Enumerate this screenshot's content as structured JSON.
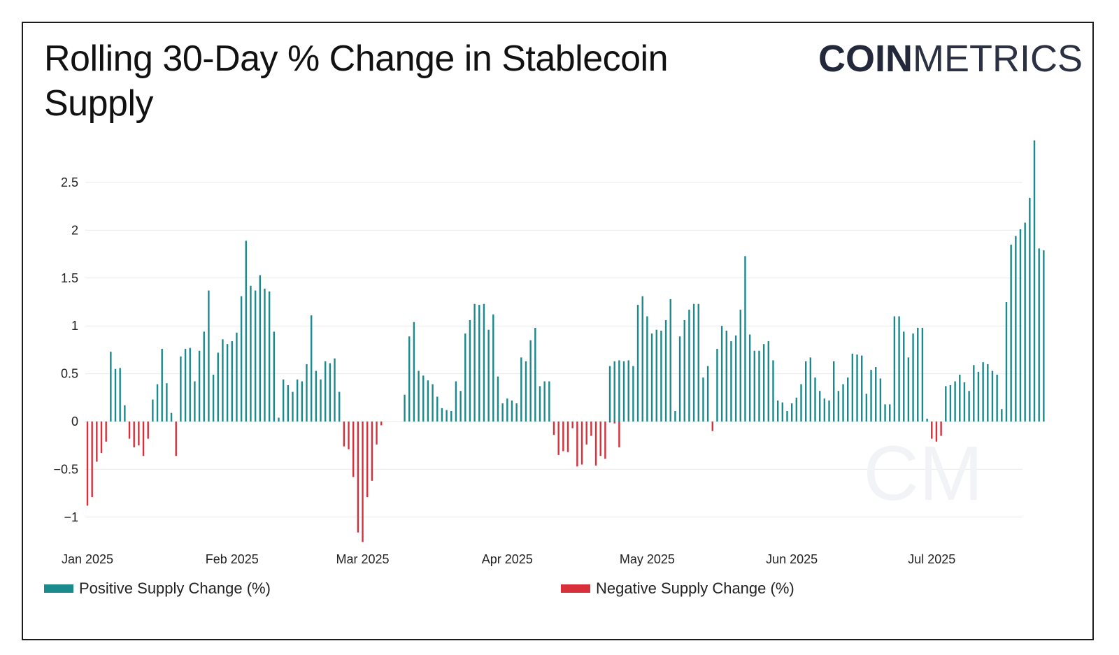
{
  "header": {
    "title": "Rolling 30-Day % Change in Stablecoin Supply",
    "logo_bold": "COIN",
    "logo_light": "METRICS",
    "watermark": "CM"
  },
  "colors": {
    "positive": "#1a8a8c",
    "negative": "#d7303b",
    "grid": "#e9e9e9"
  },
  "legend": {
    "positive_label": "Positive Supply Change (%)",
    "negative_label": "Negative Supply Change (%)"
  },
  "chart_data": {
    "type": "bar",
    "grid": true,
    "legend_position": "bottom",
    "ylim": [
      -1.3,
      3.0
    ],
    "yticks": [
      {
        "value": 2.5,
        "label": "2.5"
      },
      {
        "value": 2,
        "label": "2"
      },
      {
        "value": 1.5,
        "label": "1.5"
      },
      {
        "value": 1,
        "label": "1"
      },
      {
        "value": 0.5,
        "label": "0.5"
      },
      {
        "value": 0,
        "label": "0"
      },
      {
        "value": -0.5,
        "label": "−0.5"
      },
      {
        "value": -1,
        "label": "−1"
      }
    ],
    "xticks": [
      {
        "date": "2025-01-01",
        "label": "Jan 2025"
      },
      {
        "date": "2025-02-01",
        "label": "Feb 2025"
      },
      {
        "date": "2025-03-01",
        "label": "Mar 2025"
      },
      {
        "date": "2025-04-01",
        "label": "Apr 2025"
      },
      {
        "date": "2025-05-01",
        "label": "May 2025"
      },
      {
        "date": "2025-06-01",
        "label": "Jun 2025"
      },
      {
        "date": "2025-07-01",
        "label": "Jul 2025"
      }
    ],
    "series": [
      {
        "name": "Positive Supply Change (%)",
        "points": [
          [
            "2025-01-06",
            0.73
          ],
          [
            "2025-01-07",
            0.55
          ],
          [
            "2025-01-08",
            0.56
          ],
          [
            "2025-01-09",
            0.17
          ],
          [
            "2025-01-15",
            0.23
          ],
          [
            "2025-01-16",
            0.39
          ],
          [
            "2025-01-17",
            0.76
          ],
          [
            "2025-01-18",
            0.4
          ],
          [
            "2025-01-19",
            0.09
          ],
          [
            "2025-01-21",
            0.68
          ],
          [
            "2025-01-22",
            0.76
          ],
          [
            "2025-01-23",
            0.77
          ],
          [
            "2025-01-24",
            0.42
          ],
          [
            "2025-01-25",
            0.74
          ],
          [
            "2025-01-26",
            0.94
          ],
          [
            "2025-01-27",
            1.37
          ],
          [
            "2025-01-28",
            0.49
          ],
          [
            "2025-01-29",
            0.72
          ],
          [
            "2025-01-30",
            0.86
          ],
          [
            "2025-01-31",
            0.81
          ],
          [
            "2025-02-01",
            0.84
          ],
          [
            "2025-02-02",
            0.93
          ],
          [
            "2025-02-03",
            1.31
          ],
          [
            "2025-02-04",
            1.89
          ],
          [
            "2025-02-05",
            1.42
          ],
          [
            "2025-02-06",
            1.37
          ],
          [
            "2025-02-07",
            1.53
          ],
          [
            "2025-02-08",
            1.39
          ],
          [
            "2025-02-09",
            1.36
          ],
          [
            "2025-02-10",
            0.94
          ],
          [
            "2025-02-11",
            0.04
          ],
          [
            "2025-02-12",
            0.44
          ],
          [
            "2025-02-13",
            0.38
          ],
          [
            "2025-02-14",
            0.31
          ],
          [
            "2025-02-15",
            0.44
          ],
          [
            "2025-02-16",
            0.42
          ],
          [
            "2025-02-17",
            0.6
          ],
          [
            "2025-02-18",
            1.11
          ],
          [
            "2025-02-19",
            0.53
          ],
          [
            "2025-02-20",
            0.44
          ],
          [
            "2025-02-21",
            0.63
          ],
          [
            "2025-02-22",
            0.61
          ],
          [
            "2025-02-23",
            0.66
          ],
          [
            "2025-02-24",
            0.31
          ],
          [
            "2025-03-10",
            0.28
          ],
          [
            "2025-03-11",
            0.89
          ],
          [
            "2025-03-12",
            1.04
          ],
          [
            "2025-03-13",
            0.53
          ],
          [
            "2025-03-14",
            0.48
          ],
          [
            "2025-03-15",
            0.43
          ],
          [
            "2025-03-16",
            0.39
          ],
          [
            "2025-03-17",
            0.26
          ],
          [
            "2025-03-18",
            0.14
          ],
          [
            "2025-03-19",
            0.12
          ],
          [
            "2025-03-20",
            0.11
          ],
          [
            "2025-03-21",
            0.42
          ],
          [
            "2025-03-22",
            0.32
          ],
          [
            "2025-03-23",
            0.92
          ],
          [
            "2025-03-24",
            1.06
          ],
          [
            "2025-03-25",
            1.23
          ],
          [
            "2025-03-26",
            1.22
          ],
          [
            "2025-03-27",
            1.23
          ],
          [
            "2025-03-28",
            0.96
          ],
          [
            "2025-03-29",
            1.12
          ],
          [
            "2025-03-30",
            0.47
          ],
          [
            "2025-03-31",
            0.19
          ],
          [
            "2025-04-01",
            0.24
          ],
          [
            "2025-04-02",
            0.22
          ],
          [
            "2025-04-03",
            0.19
          ],
          [
            "2025-04-04",
            0.67
          ],
          [
            "2025-04-05",
            0.63
          ],
          [
            "2025-04-06",
            0.85
          ],
          [
            "2025-04-07",
            0.98
          ],
          [
            "2025-04-08",
            0.37
          ],
          [
            "2025-04-09",
            0.42
          ],
          [
            "2025-04-10",
            0.42
          ],
          [
            "2025-04-23",
            0.58
          ],
          [
            "2025-04-24",
            0.63
          ],
          [
            "2025-04-25",
            0.64
          ],
          [
            "2025-04-26",
            0.63
          ],
          [
            "2025-04-27",
            0.64
          ],
          [
            "2025-04-28",
            0.58
          ],
          [
            "2025-04-29",
            1.22
          ],
          [
            "2025-04-30",
            1.31
          ],
          [
            "2025-05-01",
            1.1
          ],
          [
            "2025-05-02",
            0.92
          ],
          [
            "2025-05-03",
            0.96
          ],
          [
            "2025-05-04",
            0.95
          ],
          [
            "2025-05-05",
            1.06
          ],
          [
            "2025-05-06",
            1.28
          ],
          [
            "2025-05-07",
            0.11
          ],
          [
            "2025-05-08",
            0.89
          ],
          [
            "2025-05-09",
            1.06
          ],
          [
            "2025-05-10",
            1.17
          ],
          [
            "2025-05-11",
            1.23
          ],
          [
            "2025-05-12",
            1.23
          ],
          [
            "2025-05-13",
            0.46
          ],
          [
            "2025-05-14",
            0.58
          ],
          [
            "2025-05-16",
            0.76
          ],
          [
            "2025-05-17",
            1.0
          ],
          [
            "2025-05-18",
            0.95
          ],
          [
            "2025-05-19",
            0.84
          ],
          [
            "2025-05-20",
            0.9
          ],
          [
            "2025-05-21",
            1.17
          ],
          [
            "2025-05-22",
            1.73
          ],
          [
            "2025-05-23",
            0.91
          ],
          [
            "2025-05-24",
            0.74
          ],
          [
            "2025-05-25",
            0.74
          ],
          [
            "2025-05-26",
            0.81
          ],
          [
            "2025-05-27",
            0.84
          ],
          [
            "2025-05-28",
            0.64
          ],
          [
            "2025-05-29",
            0.22
          ],
          [
            "2025-05-30",
            0.2
          ],
          [
            "2025-05-31",
            0.11
          ],
          [
            "2025-06-01",
            0.19
          ],
          [
            "2025-06-02",
            0.25
          ],
          [
            "2025-06-03",
            0.39
          ],
          [
            "2025-06-04",
            0.63
          ],
          [
            "2025-06-05",
            0.67
          ],
          [
            "2025-06-06",
            0.46
          ],
          [
            "2025-06-07",
            0.32
          ],
          [
            "2025-06-08",
            0.24
          ],
          [
            "2025-06-09",
            0.22
          ],
          [
            "2025-06-10",
            0.63
          ],
          [
            "2025-06-11",
            0.32
          ],
          [
            "2025-06-12",
            0.39
          ],
          [
            "2025-06-13",
            0.46
          ],
          [
            "2025-06-14",
            0.71
          ],
          [
            "2025-06-15",
            0.7
          ],
          [
            "2025-06-16",
            0.69
          ],
          [
            "2025-06-17",
            0.29
          ],
          [
            "2025-06-18",
            0.54
          ],
          [
            "2025-06-19",
            0.57
          ],
          [
            "2025-06-20",
            0.45
          ],
          [
            "2025-06-21",
            0.18
          ],
          [
            "2025-06-22",
            0.18
          ],
          [
            "2025-06-23",
            1.1
          ],
          [
            "2025-06-24",
            1.1
          ],
          [
            "2025-06-25",
            0.94
          ],
          [
            "2025-06-26",
            0.67
          ],
          [
            "2025-06-27",
            0.92
          ],
          [
            "2025-06-28",
            0.98
          ],
          [
            "2025-06-29",
            0.98
          ],
          [
            "2025-06-30",
            0.03
          ],
          [
            "2025-07-04",
            0.37
          ],
          [
            "2025-07-05",
            0.38
          ],
          [
            "2025-07-06",
            0.42
          ],
          [
            "2025-07-07",
            0.49
          ],
          [
            "2025-07-08",
            0.41
          ],
          [
            "2025-07-09",
            0.32
          ],
          [
            "2025-07-10",
            0.59
          ],
          [
            "2025-07-11",
            0.52
          ],
          [
            "2025-07-12",
            0.62
          ],
          [
            "2025-07-13",
            0.6
          ],
          [
            "2025-07-14",
            0.53
          ],
          [
            "2025-07-15",
            0.49
          ],
          [
            "2025-07-16",
            0.13
          ],
          [
            "2025-07-17",
            1.25
          ],
          [
            "2025-07-18",
            1.85
          ],
          [
            "2025-07-19",
            1.94
          ],
          [
            "2025-07-20",
            2.01
          ],
          [
            "2025-07-21",
            2.08
          ],
          [
            "2025-07-22",
            2.34
          ],
          [
            "2025-07-23",
            2.94
          ],
          [
            "2025-07-24",
            1.81
          ],
          [
            "2025-07-25",
            1.79
          ]
        ]
      },
      {
        "name": "Negative Supply Change (%)",
        "points": [
          [
            "2025-01-01",
            -0.88
          ],
          [
            "2025-01-02",
            -0.79
          ],
          [
            "2025-01-03",
            -0.42
          ],
          [
            "2025-01-04",
            -0.33
          ],
          [
            "2025-01-05",
            -0.21
          ],
          [
            "2025-01-10",
            -0.18
          ],
          [
            "2025-01-11",
            -0.27
          ],
          [
            "2025-01-12",
            -0.25
          ],
          [
            "2025-01-13",
            -0.36
          ],
          [
            "2025-01-14",
            -0.18
          ],
          [
            "2025-01-20",
            -0.36
          ],
          [
            "2025-02-25",
            -0.26
          ],
          [
            "2025-02-26",
            -0.29
          ],
          [
            "2025-02-27",
            -0.58
          ],
          [
            "2025-02-28",
            -1.16
          ],
          [
            "2025-03-01",
            -1.26
          ],
          [
            "2025-03-02",
            -0.79
          ],
          [
            "2025-03-03",
            -0.62
          ],
          [
            "2025-03-04",
            -0.24
          ],
          [
            "2025-03-05",
            -0.04
          ],
          [
            "2025-04-11",
            -0.14
          ],
          [
            "2025-04-12",
            -0.35
          ],
          [
            "2025-04-13",
            -0.31
          ],
          [
            "2025-04-14",
            -0.32
          ],
          [
            "2025-04-15",
            -0.07
          ],
          [
            "2025-04-16",
            -0.47
          ],
          [
            "2025-04-17",
            -0.45
          ],
          [
            "2025-04-18",
            -0.24
          ],
          [
            "2025-04-19",
            -0.15
          ],
          [
            "2025-04-20",
            -0.46
          ],
          [
            "2025-04-21",
            -0.36
          ],
          [
            "2025-04-22",
            -0.39
          ],
          [
            "2025-04-23",
            -0.01
          ],
          [
            "2025-04-24",
            -0.02
          ],
          [
            "2025-04-25",
            -0.27
          ],
          [
            "2025-05-15",
            -0.1
          ],
          [
            "2025-07-01",
            -0.18
          ],
          [
            "2025-07-02",
            -0.21
          ],
          [
            "2025-07-03",
            -0.15
          ]
        ]
      }
    ]
  }
}
